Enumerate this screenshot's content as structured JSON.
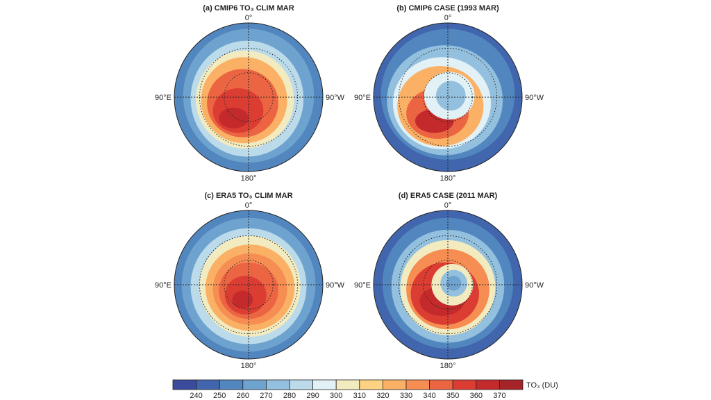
{
  "panels": [
    {
      "title": "(a) CMIP6 TO₃ CLIM MAR",
      "top": "0°",
      "left": "90°E",
      "right": "90°W",
      "bottom": "180°"
    },
    {
      "title": "(b) CMIP6 CASE (1993 MAR)",
      "top": "0°",
      "left": "90°E",
      "right": "90°W",
      "bottom": "180°"
    },
    {
      "title": "(c) ERA5 TO₃ CLIM MAR",
      "top": "0°",
      "left": "90°E",
      "right": "90°W",
      "bottom": "180°"
    },
    {
      "title": "(d) ERA5 CASE (2011 MAR)",
      "top": "0°",
      "left": "90°E",
      "right": "90°W",
      "bottom": "180°"
    }
  ],
  "colorbar": {
    "label": "TO₃ (DU)",
    "ticks": [
      "240",
      "250",
      "260",
      "270",
      "280",
      "290",
      "300",
      "310",
      "320",
      "330",
      "340",
      "350",
      "360",
      "370"
    ],
    "colors": [
      "#3a4a9c",
      "#4266ad",
      "#5286bf",
      "#6fa3cf",
      "#93c0de",
      "#bcdbea",
      "#e1f1f5",
      "#f3ebc0",
      "#fdd282",
      "#fbb165",
      "#f68d52",
      "#ec6543",
      "#dc3d33",
      "#c42a2c",
      "#a52428"
    ]
  }
}
